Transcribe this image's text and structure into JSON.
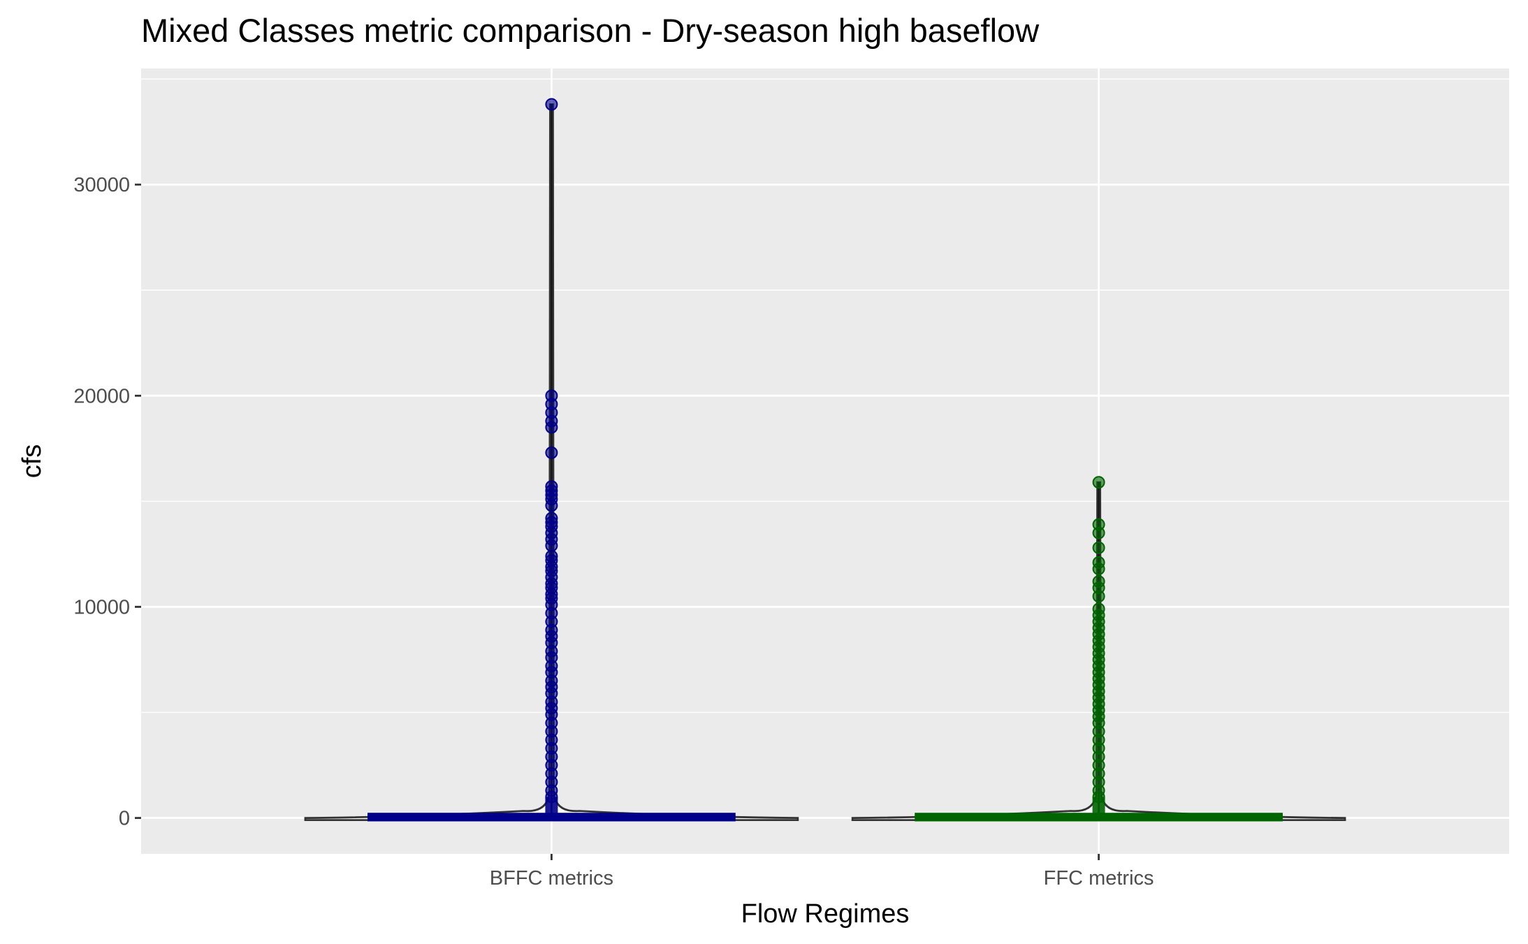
{
  "chart_data": {
    "type": "violin",
    "title": "Mixed Classes metric comparison - Dry-season high baseflow",
    "xlabel": "Flow Regimes",
    "ylabel": "cfs",
    "categories": [
      "BFFC metrics",
      "FFC metrics"
    ],
    "y_ticks": [
      0,
      10000,
      20000,
      30000
    ],
    "y_tick_labels": [
      "0",
      "10000",
      "20000",
      "30000"
    ],
    "ylim": [
      -1700,
      35500
    ],
    "grid": true,
    "legend": "none",
    "series": [
      {
        "category": "BFFC metrics",
        "color": "#00008b",
        "max": 33800,
        "median": 20,
        "q1": 5,
        "q3": 80,
        "outliers": [
          33800,
          20000,
          19600,
          19200,
          18800,
          18500,
          17300,
          15700,
          15500,
          15300,
          15100,
          14800,
          14200,
          14000,
          13800,
          13500,
          13200,
          12900,
          12400,
          12200,
          11900,
          11700,
          11400,
          11100,
          10900,
          10600,
          10400,
          10100,
          9700,
          9300,
          8900,
          8600,
          8300,
          7900,
          7600,
          7200,
          6900,
          6500,
          6200,
          5900,
          5500,
          5200,
          4900,
          4500,
          4100,
          3700,
          3300,
          2900,
          2500,
          2100,
          1700,
          1300,
          1000
        ]
      },
      {
        "category": "FFC metrics",
        "color": "#006400",
        "max": 15900,
        "median": 20,
        "q1": 5,
        "q3": 80,
        "outliers": [
          15900,
          13900,
          13500,
          12800,
          12100,
          11800,
          11200,
          10900,
          10500,
          9900,
          9600,
          9300,
          9000,
          8700,
          8400,
          8100,
          7800,
          7500,
          7200,
          6900,
          6600,
          6300,
          6000,
          5700,
          5400,
          5100,
          4800,
          4500,
          4100,
          3700,
          3300,
          2900,
          2500,
          2100,
          1700,
          1300,
          1000
        ]
      }
    ]
  }
}
